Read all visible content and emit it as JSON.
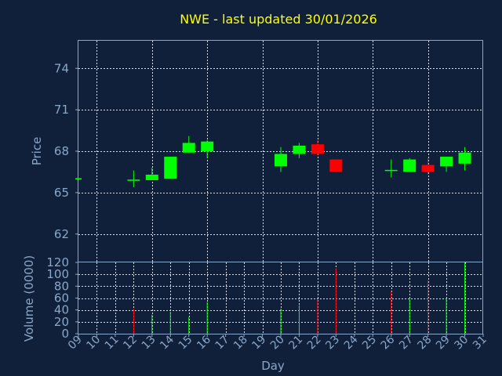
{
  "chart_data": [
    {
      "type": "candlestick",
      "title": "NWE - last updated 30/01/2026",
      "ylabel": "Price",
      "ylim": [
        60,
        76
      ],
      "yticks": [
        62,
        65,
        68,
        71,
        74
      ],
      "colors": {
        "up": "#00ff00",
        "down": "#ff0000",
        "title": "#ffff00",
        "text": "#8aa6c8",
        "background": "#10203a"
      },
      "candles": [
        {
          "day": "09",
          "open": 66.0,
          "high": 66.0,
          "low": 66.0,
          "close": 66.0
        },
        {
          "day": "12",
          "open": 65.9,
          "high": 66.6,
          "low": 65.4,
          "close": 65.9
        },
        {
          "day": "13",
          "open": 65.9,
          "high": 66.8,
          "low": 65.9,
          "close": 66.3
        },
        {
          "day": "14",
          "open": 66.0,
          "high": 67.6,
          "low": 66.0,
          "close": 67.6
        },
        {
          "day": "15",
          "open": 67.9,
          "high": 69.1,
          "low": 67.9,
          "close": 68.6
        },
        {
          "day": "16",
          "open": 68.0,
          "high": 68.8,
          "low": 67.5,
          "close": 68.7
        },
        {
          "day": "20",
          "open": 66.9,
          "high": 68.3,
          "low": 66.5,
          "close": 67.8
        },
        {
          "day": "21",
          "open": 67.8,
          "high": 68.6,
          "low": 67.5,
          "close": 68.4
        },
        {
          "day": "22",
          "open": 68.5,
          "high": 68.8,
          "low": 67.7,
          "close": 67.8
        },
        {
          "day": "23",
          "open": 67.4,
          "high": 67.4,
          "low": 66.5,
          "close": 66.5
        },
        {
          "day": "26",
          "open": 66.6,
          "high": 67.4,
          "low": 66.1,
          "close": 66.6
        },
        {
          "day": "27",
          "open": 66.5,
          "high": 67.5,
          "low": 66.5,
          "close": 67.4
        },
        {
          "day": "28",
          "open": 67.0,
          "high": 67.5,
          "low": 66.3,
          "close": 66.5
        },
        {
          "day": "29",
          "open": 66.9,
          "high": 67.6,
          "low": 66.5,
          "close": 67.6
        },
        {
          "day": "30",
          "open": 67.1,
          "high": 68.3,
          "low": 66.6,
          "close": 67.9
        }
      ]
    },
    {
      "type": "bar",
      "ylabel": "Volume (0000)",
      "xlabel": "Day",
      "ylim": [
        0,
        120
      ],
      "yticks": [
        0,
        20,
        40,
        60,
        80,
        100,
        120
      ],
      "categories": [
        "09",
        "10",
        "11",
        "12",
        "13",
        "14",
        "15",
        "16",
        "17",
        "18",
        "19",
        "20",
        "21",
        "22",
        "23",
        "24",
        "25",
        "26",
        "27",
        "28",
        "29",
        "30",
        "31"
      ],
      "bars": [
        {
          "day": "12",
          "value": 42,
          "color": "#ff0000"
        },
        {
          "day": "13",
          "value": 32,
          "color": "#00ff00"
        },
        {
          "day": "14",
          "value": 37,
          "color": "#00ff00"
        },
        {
          "day": "15",
          "value": 28,
          "color": "#00ff00"
        },
        {
          "day": "16",
          "value": 53,
          "color": "#00ff00"
        },
        {
          "day": "20",
          "value": 42,
          "color": "#00ff00"
        },
        {
          "day": "21",
          "value": 48,
          "color": "#00ff00"
        },
        {
          "day": "22",
          "value": 57,
          "color": "#ff0000"
        },
        {
          "day": "23",
          "value": 110,
          "color": "#ff0000"
        },
        {
          "day": "26",
          "value": 72,
          "color": "#ff0000"
        },
        {
          "day": "27",
          "value": 59,
          "color": "#00ff00"
        },
        {
          "day": "28",
          "value": 90,
          "color": "#ff0000"
        },
        {
          "day": "29",
          "value": 60,
          "color": "#00ff00"
        },
        {
          "day": "30",
          "value": 120,
          "color": "#00ff00"
        }
      ]
    }
  ]
}
